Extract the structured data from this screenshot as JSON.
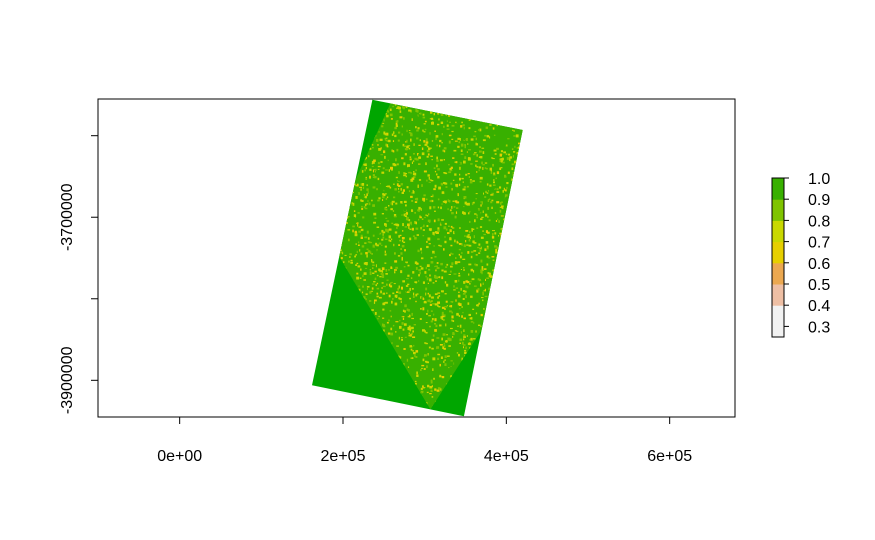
{
  "chart_data": {
    "type": "heatmap",
    "title": "",
    "xlabel": "",
    "ylabel": "",
    "xlim": [
      -100000,
      680000
    ],
    "ylim": [
      -3945000,
      -3555000
    ],
    "x_ticks": [
      {
        "value": 0,
        "label": "0e+00"
      },
      {
        "value": 200000,
        "label": "2e+05"
      },
      {
        "value": 400000,
        "label": "4e+05"
      },
      {
        "value": 600000,
        "label": "6e+05"
      }
    ],
    "y_ticks": [
      {
        "value": -3600000,
        "label": ""
      },
      {
        "value": -3700000,
        "label": "-3700000"
      },
      {
        "value": -3800000,
        "label": ""
      },
      {
        "value": -3900000,
        "label": "-3900000"
      }
    ],
    "raster_corners": [
      {
        "corner": "top-left",
        "x": 236000,
        "y": -3556000
      },
      {
        "corner": "top-right",
        "x": 420000,
        "y": -3593000
      },
      {
        "corner": "bottom-right",
        "x": 348000,
        "y": -3944000
      },
      {
        "corner": "bottom-left",
        "x": 162000,
        "y": -3906000
      }
    ],
    "legend": {
      "placement": "right",
      "min": 0.25,
      "max": 1.0,
      "ticks": [
        {
          "value": 1.0,
          "label": "1.0"
        },
        {
          "value": 0.9,
          "label": "0.9"
        },
        {
          "value": 0.8,
          "label": "0.8"
        },
        {
          "value": 0.7,
          "label": "0.7"
        },
        {
          "value": 0.6,
          "label": "0.6"
        },
        {
          "value": 0.5,
          "label": "0.5"
        },
        {
          "value": 0.4,
          "label": "0.4"
        },
        {
          "value": 0.3,
          "label": "0.3"
        }
      ],
      "color_stops": [
        {
          "value": 0.25,
          "color": "#f2f2f2"
        },
        {
          "value": 0.4,
          "color": "#eebfa4"
        },
        {
          "value": 0.5,
          "color": "#eba850"
        },
        {
          "value": 0.6,
          "color": "#e6cf00"
        },
        {
          "value": 0.7,
          "color": "#c9d800"
        },
        {
          "value": 0.8,
          "color": "#7fc400"
        },
        {
          "value": 0.9,
          "color": "#38b000"
        },
        {
          "value": 1.0,
          "color": "#00a600"
        }
      ]
    }
  }
}
